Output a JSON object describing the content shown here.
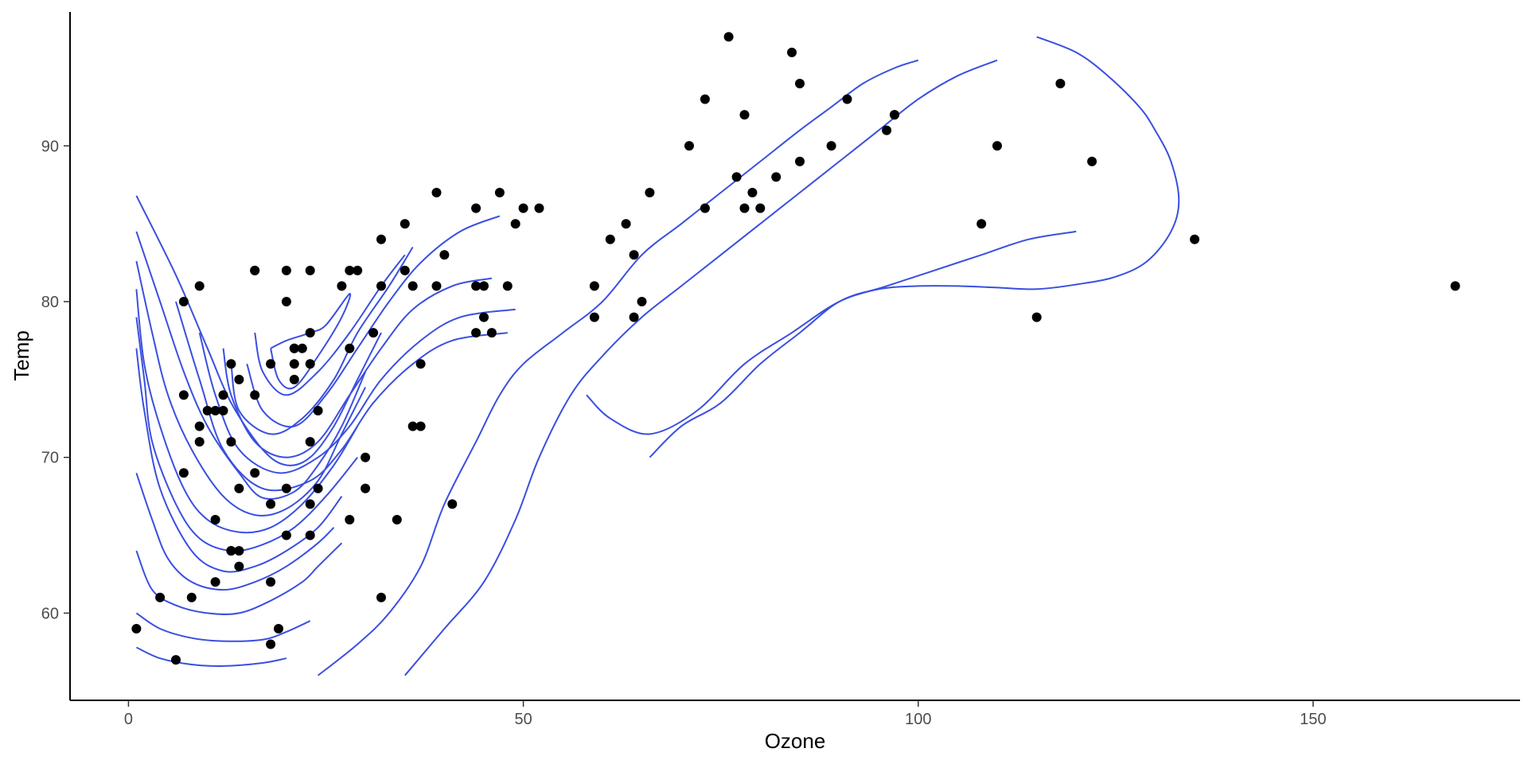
{
  "chart_data": {
    "type": "scatter",
    "title": "",
    "xlabel": "Ozone",
    "ylabel": "Temp",
    "xlim": [
      -7.4,
      176.2
    ],
    "ylim": [
      54.4,
      98.6
    ],
    "x_ticks": [
      0,
      50,
      100,
      150
    ],
    "y_ticks": [
      60,
      70,
      80,
      90
    ],
    "grid": false,
    "legend": "none",
    "point_color": "#000000",
    "contour_color": "#3a4fe0",
    "points": [
      [
        41,
        67
      ],
      [
        36,
        72
      ],
      [
        12,
        74
      ],
      [
        18,
        62
      ],
      [
        28,
        66
      ],
      [
        23,
        65
      ],
      [
        19,
        59
      ],
      [
        8,
        61
      ],
      [
        7,
        74
      ],
      [
        16,
        69
      ],
      [
        11,
        66
      ],
      [
        14,
        68
      ],
      [
        18,
        58
      ],
      [
        14,
        64
      ],
      [
        34,
        66
      ],
      [
        6,
        57
      ],
      [
        30,
        68
      ],
      [
        11,
        62
      ],
      [
        1,
        59
      ],
      [
        11,
        73
      ],
      [
        4,
        61
      ],
      [
        32,
        61
      ],
      [
        23,
        67
      ],
      [
        45,
        81
      ],
      [
        115,
        79
      ],
      [
        37,
        76
      ],
      [
        29,
        82
      ],
      [
        71,
        90
      ],
      [
        39,
        87
      ],
      [
        23,
        82
      ],
      [
        21,
        77
      ],
      [
        37,
        72
      ],
      [
        20,
        65
      ],
      [
        12,
        73
      ],
      [
        13,
        76
      ],
      [
        135,
        84
      ],
      [
        49,
        85
      ],
      [
        32,
        81
      ],
      [
        64,
        83
      ],
      [
        40,
        83
      ],
      [
        77,
        88
      ],
      [
        97,
        92
      ],
      [
        97,
        92
      ],
      [
        85,
        89
      ],
      [
        10,
        73
      ],
      [
        27,
        81
      ],
      [
        7,
        80
      ],
      [
        48,
        81
      ],
      [
        35,
        82
      ],
      [
        61,
        84
      ],
      [
        79,
        87
      ],
      [
        63,
        85
      ],
      [
        16,
        74
      ],
      [
        80,
        86
      ],
      [
        108,
        85
      ],
      [
        20,
        82
      ],
      [
        52,
        86
      ],
      [
        82,
        88
      ],
      [
        50,
        86
      ],
      [
        64,
        79
      ],
      [
        59,
        81
      ],
      [
        39,
        81
      ],
      [
        9,
        81
      ],
      [
        16,
        82
      ],
      [
        78,
        86
      ],
      [
        35,
        85
      ],
      [
        66,
        87
      ],
      [
        122,
        89
      ],
      [
        89,
        90
      ],
      [
        110,
        90
      ],
      [
        44,
        86
      ],
      [
        28,
        82
      ],
      [
        65,
        80
      ],
      [
        22,
        77
      ],
      [
        59,
        79
      ],
      [
        23,
        76
      ],
      [
        31,
        78
      ],
      [
        44,
        78
      ],
      [
        21,
        77
      ],
      [
        9,
        72
      ],
      [
        45,
        79
      ],
      [
        168,
        81
      ],
      [
        73,
        86
      ],
      [
        76,
        97
      ],
      [
        118,
        94
      ],
      [
        84,
        96
      ],
      [
        85,
        94
      ],
      [
        96,
        91
      ],
      [
        78,
        92
      ],
      [
        73,
        93
      ],
      [
        91,
        93
      ],
      [
        47,
        87
      ],
      [
        32,
        84
      ],
      [
        20,
        80
      ],
      [
        23,
        78
      ],
      [
        21,
        75
      ],
      [
        24,
        73
      ],
      [
        44,
        81
      ],
      [
        21,
        76
      ],
      [
        28,
        77
      ],
      [
        9,
        71
      ],
      [
        13,
        71
      ],
      [
        46,
        78
      ],
      [
        18,
        67
      ],
      [
        13,
        64
      ],
      [
        24,
        68
      ],
      [
        16,
        82
      ],
      [
        13,
        64
      ],
      [
        23,
        71
      ],
      [
        36,
        81
      ],
      [
        7,
        69
      ],
      [
        14,
        63
      ],
      [
        30,
        70
      ],
      [
        14,
        75
      ],
      [
        18,
        76
      ],
      [
        20,
        68
      ]
    ],
    "contour_lines": [
      [
        [
          1,
          57.8
        ],
        [
          4,
          57.1
        ],
        [
          8,
          56.7
        ],
        [
          12,
          56.6
        ],
        [
          17,
          56.8
        ],
        [
          20,
          57.1
        ]
      ],
      [
        [
          1,
          60
        ],
        [
          4,
          59
        ],
        [
          8,
          58.4
        ],
        [
          12,
          58.2
        ],
        [
          17,
          58.3
        ],
        [
          20,
          58.8
        ],
        [
          23,
          59.5
        ]
      ],
      [
        [
          1,
          64
        ],
        [
          3,
          61.5
        ],
        [
          6,
          60.5
        ],
        [
          10,
          60
        ],
        [
          14,
          60
        ],
        [
          18,
          60.8
        ],
        [
          22,
          62
        ],
        [
          24,
          63
        ],
        [
          27,
          64.5
        ]
      ],
      [
        [
          1,
          69
        ],
        [
          3,
          66
        ],
        [
          5,
          63.5
        ],
        [
          8,
          62
        ],
        [
          12,
          61.5
        ],
        [
          16,
          62
        ],
        [
          20,
          63
        ],
        [
          24,
          64.5
        ],
        [
          26,
          65.5
        ]
      ],
      [
        [
          1,
          77
        ],
        [
          2,
          73
        ],
        [
          4,
          68
        ],
        [
          8,
          64
        ],
        [
          12,
          62.7
        ],
        [
          16,
          63
        ],
        [
          20,
          64
        ],
        [
          24,
          65.5
        ],
        [
          27,
          67.5
        ]
      ],
      [
        [
          1,
          79
        ],
        [
          2,
          75
        ],
        [
          3,
          71
        ],
        [
          6,
          67
        ],
        [
          9,
          64.8
        ],
        [
          13,
          64
        ],
        [
          17,
          64.4
        ],
        [
          21,
          65.5
        ],
        [
          25,
          67.5
        ],
        [
          29,
          70
        ]
      ],
      [
        [
          1,
          80.8
        ],
        [
          2,
          76
        ],
        [
          4,
          72
        ],
        [
          7,
          68
        ],
        [
          10,
          66
        ],
        [
          14,
          65.2
        ],
        [
          18,
          65.5
        ],
        [
          22,
          67
        ],
        [
          26,
          69.5
        ],
        [
          29,
          72
        ]
      ],
      [
        [
          1,
          82.6
        ],
        [
          3,
          78
        ],
        [
          5,
          74
        ],
        [
          8,
          70.5
        ],
        [
          12,
          67.5
        ],
        [
          16,
          66.3
        ],
        [
          20,
          66.7
        ],
        [
          24,
          68.5
        ],
        [
          27,
          71.5
        ],
        [
          30,
          74.5
        ]
      ],
      [
        [
          1,
          84.5
        ],
        [
          4,
          80
        ],
        [
          7,
          75.5
        ],
        [
          10,
          72
        ],
        [
          14,
          69
        ],
        [
          17,
          67.4
        ],
        [
          21,
          67.8
        ],
        [
          24,
          69.5
        ],
        [
          27,
          72
        ],
        [
          30,
          75.5
        ]
      ],
      [
        [
          1,
          86.8
        ],
        [
          6,
          81.7
        ],
        [
          10,
          77
        ],
        [
          13,
          73.5
        ],
        [
          17,
          70.5
        ],
        [
          20,
          69.5
        ],
        [
          23,
          70
        ],
        [
          26,
          72
        ],
        [
          29,
          75
        ],
        [
          32,
          78
        ]
      ],
      [
        [
          13,
          76
        ],
        [
          14,
          73
        ],
        [
          18,
          71.5
        ],
        [
          22,
          72.5
        ],
        [
          26,
          75
        ],
        [
          29,
          78
        ],
        [
          33,
          81
        ],
        [
          36,
          83.5
        ]
      ],
      [
        [
          16,
          78
        ],
        [
          17,
          75.5
        ],
        [
          20,
          74
        ],
        [
          24,
          75.5
        ],
        [
          28,
          78
        ],
        [
          32,
          81
        ],
        [
          35,
          83
        ]
      ],
      [
        [
          18,
          77
        ],
        [
          19,
          75
        ],
        [
          21,
          74.5
        ],
        [
          24,
          76.5
        ],
        [
          27,
          79
        ],
        [
          28,
          80.5
        ],
        [
          25,
          78.5
        ],
        [
          23,
          78
        ],
        [
          20,
          77.5
        ],
        [
          18,
          77
        ]
      ],
      [
        [
          15,
          76
        ],
        [
          17,
          73
        ],
        [
          21,
          72
        ],
        [
          25,
          74
        ],
        [
          29,
          77
        ],
        [
          33,
          80
        ],
        [
          37,
          82.5
        ],
        [
          42,
          84.5
        ],
        [
          47,
          85.5
        ]
      ],
      [
        [
          12,
          77
        ],
        [
          13,
          74
        ],
        [
          16,
          71
        ],
        [
          20,
          70
        ],
        [
          24,
          71
        ],
        [
          28,
          74
        ],
        [
          32,
          77
        ],
        [
          36,
          79.5
        ],
        [
          41,
          81
        ],
        [
          46,
          81.5
        ]
      ],
      [
        [
          9,
          78
        ],
        [
          11,
          74
        ],
        [
          14,
          70.5
        ],
        [
          19,
          69
        ],
        [
          24,
          70
        ],
        [
          28,
          72
        ],
        [
          32,
          75
        ],
        [
          37,
          77.5
        ],
        [
          42,
          79
        ],
        [
          49,
          79.5
        ]
      ],
      [
        [
          6,
          80
        ],
        [
          9,
          75
        ],
        [
          12,
          70.5
        ],
        [
          17,
          68
        ],
        [
          23,
          68.5
        ],
        [
          27,
          70.5
        ],
        [
          31,
          73.5
        ],
        [
          36,
          76
        ],
        [
          41,
          77.5
        ],
        [
          48,
          78
        ]
      ],
      [
        [
          24,
          56
        ],
        [
          29,
          58
        ],
        [
          33,
          60
        ],
        [
          37,
          63
        ],
        [
          40,
          67
        ],
        [
          44,
          71
        ],
        [
          47,
          74
        ],
        [
          50,
          76
        ],
        [
          55,
          78
        ],
        [
          60,
          80
        ],
        [
          65,
          83
        ],
        [
          70,
          85
        ],
        [
          75,
          87
        ],
        [
          80,
          89
        ],
        [
          85,
          91
        ],
        [
          89,
          92.5
        ],
        [
          93,
          94
        ],
        [
          97,
          95
        ],
        [
          100,
          95.5
        ]
      ],
      [
        [
          35,
          56
        ],
        [
          40,
          59
        ],
        [
          45,
          62
        ],
        [
          49,
          66
        ],
        [
          52,
          70
        ],
        [
          56,
          74
        ],
        [
          60,
          76.5
        ],
        [
          65,
          79
        ],
        [
          70,
          81
        ],
        [
          75,
          83
        ],
        [
          80,
          85
        ],
        [
          85,
          87
        ],
        [
          90,
          89
        ],
        [
          95,
          91
        ],
        [
          100,
          93
        ],
        [
          105,
          94.5
        ],
        [
          110,
          95.5
        ]
      ],
      [
        [
          58,
          74
        ],
        [
          61,
          72.5
        ],
        [
          66,
          71.5
        ],
        [
          72,
          73
        ],
        [
          78,
          76
        ],
        [
          84,
          78
        ],
        [
          90,
          80
        ],
        [
          96,
          81
        ],
        [
          102,
          82
        ],
        [
          108,
          83
        ],
        [
          114,
          84
        ],
        [
          120,
          84.5
        ]
      ],
      [
        [
          66,
          70
        ],
        [
          70,
          72
        ],
        [
          75,
          73.5
        ],
        [
          80,
          76
        ],
        [
          85,
          78
        ],
        [
          90,
          80
        ],
        [
          95,
          80.8
        ],
        [
          100,
          81
        ],
        [
          105,
          81
        ],
        [
          110,
          80.9
        ],
        [
          115,
          80.8
        ],
        [
          120,
          81.1
        ],
        [
          125,
          81.6
        ],
        [
          129,
          82.6
        ],
        [
          132,
          84.5
        ],
        [
          133,
          86.5
        ],
        [
          132,
          89
        ],
        [
          130,
          91
        ],
        [
          128,
          92.5
        ],
        [
          124,
          94.5
        ],
        [
          120,
          96
        ],
        [
          115,
          97
        ]
      ]
    ]
  }
}
